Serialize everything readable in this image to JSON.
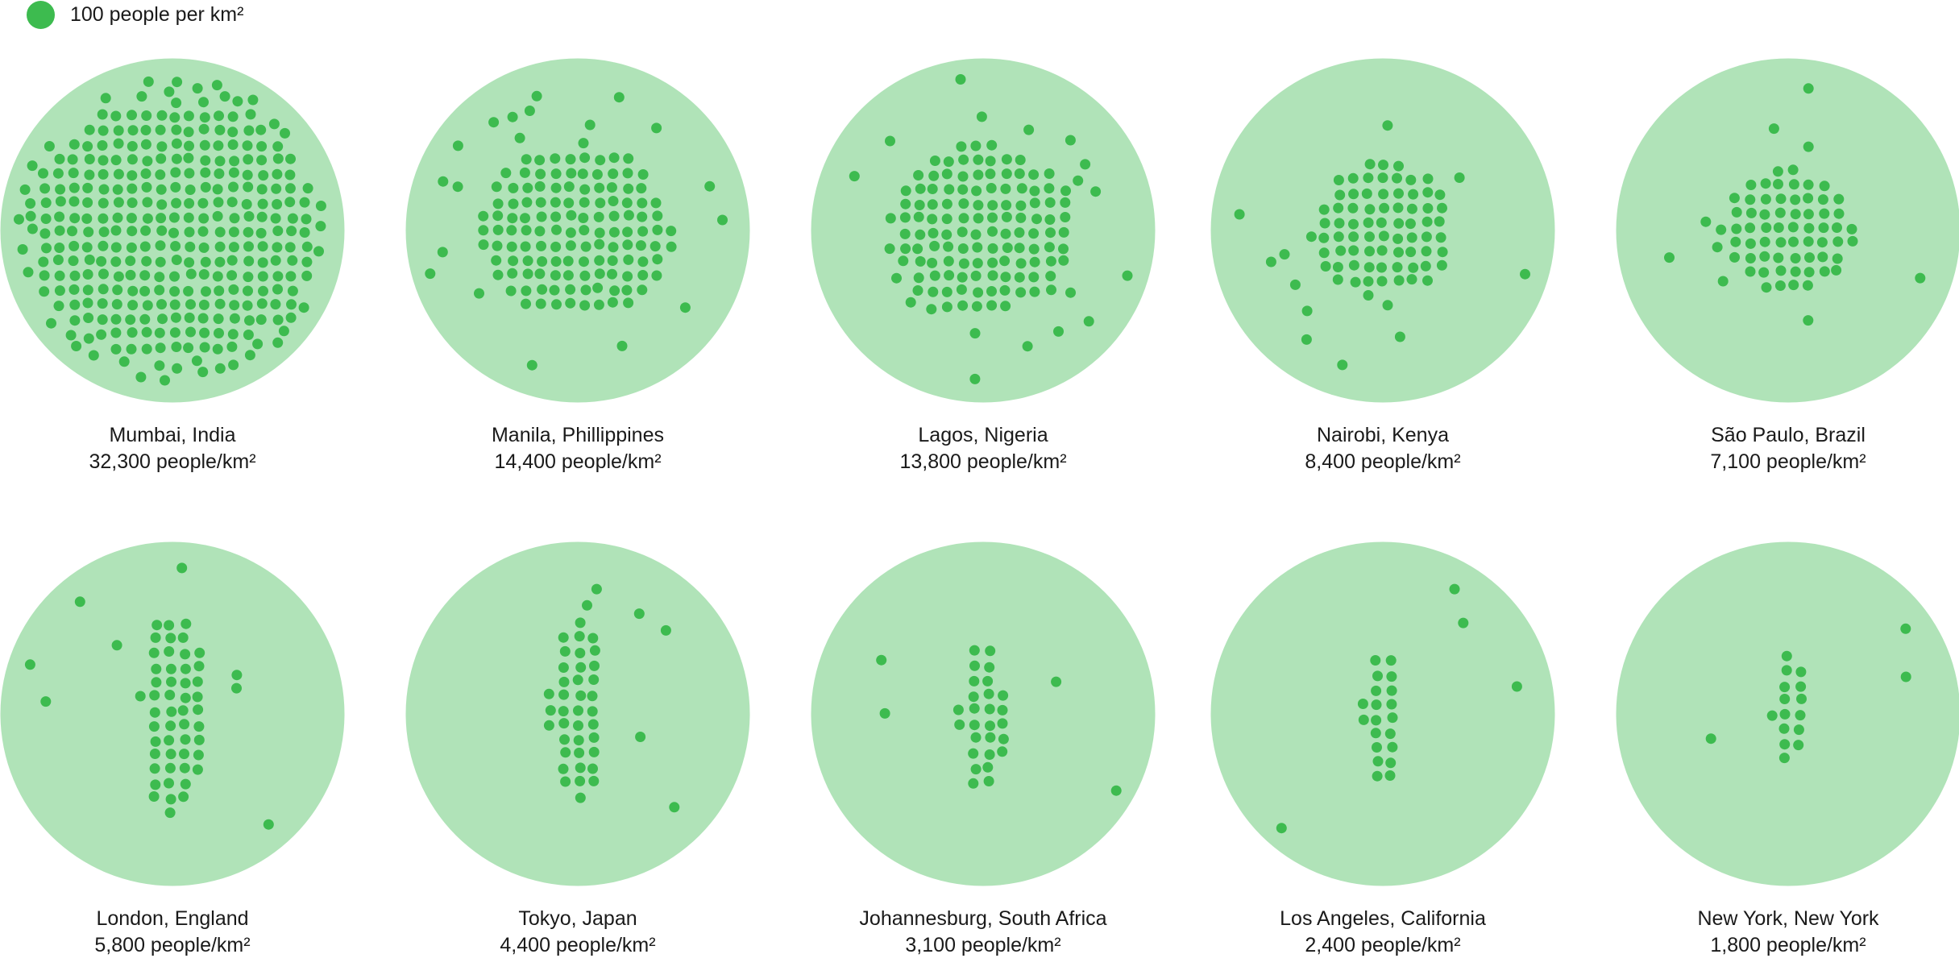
{
  "legend": {
    "label": "100 people per km²",
    "dot_value": 100
  },
  "colors": {
    "circle": "#b0e3b8",
    "dot": "#3dbb4f",
    "text": "#1a1a1a"
  },
  "chart_data": {
    "type": "dot-density",
    "title": "",
    "unit": "people/km²",
    "dot_value": 100,
    "cities": [
      {
        "name": "Mumbai, India",
        "density": 32300,
        "label": "32,300 people/km²"
      },
      {
        "name": "Manila, Phillippines",
        "density": 14400,
        "label": "14,400 people/km²"
      },
      {
        "name": "Lagos, Nigeria",
        "density": 13800,
        "label": "13,800 people/km²"
      },
      {
        "name": "Nairobi, Kenya",
        "density": 8400,
        "label": "8,400 people/km²"
      },
      {
        "name": "São Paulo, Brazil",
        "density": 7100,
        "label": "7,100 people/km²"
      },
      {
        "name": "London, England",
        "density": 5800,
        "label": "5,800 people/km²"
      },
      {
        "name": "Tokyo, Japan",
        "density": 4400,
        "label": "4,400 people/km²"
      },
      {
        "name": "Johannesburg, South Africa",
        "density": 3100,
        "label": "3,100 people/km²"
      },
      {
        "name": "Los Angeles, California",
        "density": 2400,
        "label": "2,400 people/km²"
      },
      {
        "name": "New York, New York",
        "density": 1800,
        "label": "1,800 people/km²"
      }
    ]
  }
}
